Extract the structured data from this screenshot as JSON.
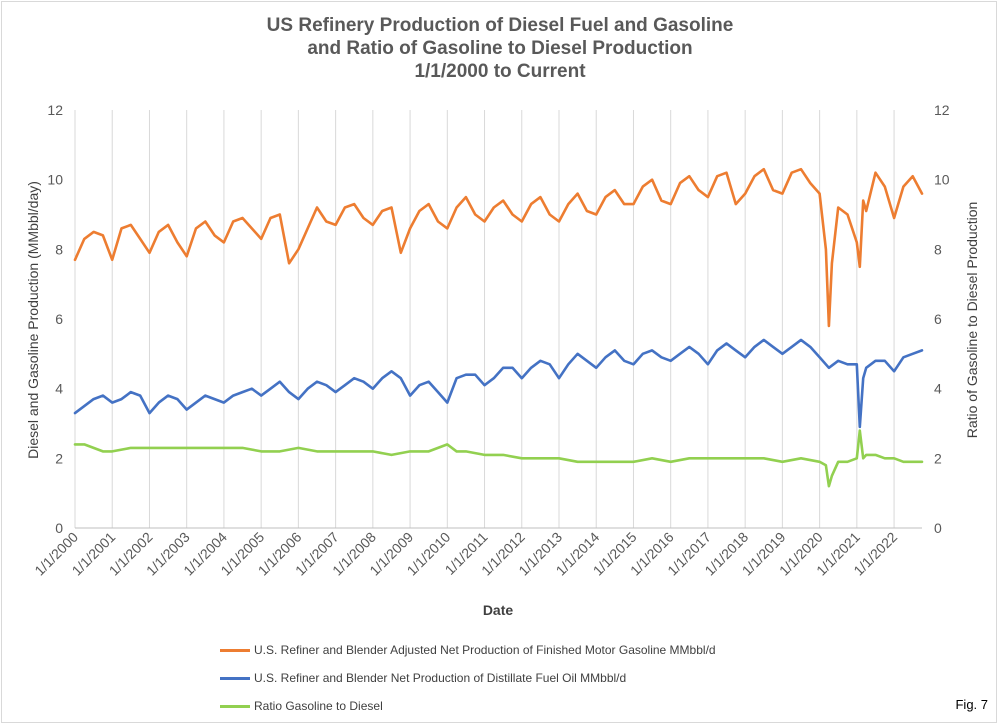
{
  "chart_data": {
    "type": "line",
    "title_lines": [
      "US Refinery Production of Diesel Fuel and Gasoline",
      "and Ratio of Gasoline to Diesel Production",
      "1/1/2000 to Current"
    ],
    "xlabel": "Date",
    "ylabel_left": "Diesel and Gasoline Production (MMbbl/day)",
    "ylabel_right": "Ratio of Gasoline to Diesel Production",
    "ylim": [
      0,
      12
    ],
    "y_ticks": [
      "0",
      "2",
      "4",
      "6",
      "8",
      "10",
      "12"
    ],
    "x_range": [
      2000.0,
      2022.75
    ],
    "x_ticks": [
      "1/1/2000",
      "1/1/2001",
      "1/1/2002",
      "1/1/2003",
      "1/1/2004",
      "1/1/2005",
      "1/1/2006",
      "1/1/2007",
      "1/1/2008",
      "1/1/2009",
      "1/1/2010",
      "1/1/2011",
      "1/1/2012",
      "1/1/2013",
      "1/1/2014",
      "1/1/2015",
      "1/1/2016",
      "1/1/2017",
      "1/1/2018",
      "1/1/2019",
      "1/1/2020",
      "1/1/2021",
      "1/1/2022"
    ],
    "grid": "vertical",
    "legend_position": "bottom",
    "series": [
      {
        "name": "U.S. Refiner and Blender Adjusted Net Production of Finished Motor Gasoline MMbbl/d",
        "color": "#ed7d31",
        "x": [
          2000.0,
          2000.25,
          2000.5,
          2000.75,
          2001.0,
          2001.25,
          2001.5,
          2001.75,
          2002.0,
          2002.25,
          2002.5,
          2002.75,
          2003.0,
          2003.25,
          2003.5,
          2003.75,
          2004.0,
          2004.25,
          2004.5,
          2004.75,
          2005.0,
          2005.25,
          2005.5,
          2005.75,
          2006.0,
          2006.25,
          2006.5,
          2006.75,
          2007.0,
          2007.25,
          2007.5,
          2007.75,
          2008.0,
          2008.25,
          2008.5,
          2008.75,
          2009.0,
          2009.25,
          2009.5,
          2009.75,
          2010.0,
          2010.25,
          2010.5,
          2010.75,
          2011.0,
          2011.25,
          2011.5,
          2011.75,
          2012.0,
          2012.25,
          2012.5,
          2012.75,
          2013.0,
          2013.25,
          2013.5,
          2013.75,
          2014.0,
          2014.25,
          2014.5,
          2014.75,
          2015.0,
          2015.25,
          2015.5,
          2015.75,
          2016.0,
          2016.25,
          2016.5,
          2016.75,
          2017.0,
          2017.25,
          2017.5,
          2017.75,
          2018.0,
          2018.25,
          2018.5,
          2018.75,
          2019.0,
          2019.25,
          2019.5,
          2019.75,
          2020.0,
          2020.17,
          2020.25,
          2020.33,
          2020.5,
          2020.75,
          2021.0,
          2021.08,
          2021.17,
          2021.25,
          2021.5,
          2021.75,
          2022.0,
          2022.25,
          2022.5,
          2022.75
        ],
        "values": [
          7.7,
          8.3,
          8.5,
          8.4,
          7.7,
          8.6,
          8.7,
          8.3,
          7.9,
          8.5,
          8.7,
          8.2,
          7.8,
          8.6,
          8.8,
          8.4,
          8.2,
          8.8,
          8.9,
          8.6,
          8.3,
          8.9,
          9.0,
          7.6,
          8.0,
          8.6,
          9.2,
          8.8,
          8.7,
          9.2,
          9.3,
          8.9,
          8.7,
          9.1,
          9.2,
          7.9,
          8.6,
          9.1,
          9.3,
          8.8,
          8.6,
          9.2,
          9.5,
          9.0,
          8.8,
          9.2,
          9.4,
          9.0,
          8.8,
          9.3,
          9.5,
          9.0,
          8.8,
          9.3,
          9.6,
          9.1,
          9.0,
          9.5,
          9.7,
          9.3,
          9.3,
          9.8,
          10.0,
          9.4,
          9.3,
          9.9,
          10.1,
          9.7,
          9.5,
          10.1,
          10.2,
          9.3,
          9.6,
          10.1,
          10.3,
          9.7,
          9.6,
          10.2,
          10.3,
          9.9,
          9.6,
          8.0,
          5.8,
          7.6,
          9.2,
          9.0,
          8.2,
          7.5,
          9.4,
          9.1,
          10.2,
          9.8,
          8.9,
          9.8,
          10.1,
          9.6
        ]
      },
      {
        "name": "U.S. Refiner and Blender Net Production of Distillate Fuel Oil MMbbl/d",
        "color": "#4472c4",
        "x": [
          2000.0,
          2000.25,
          2000.5,
          2000.75,
          2001.0,
          2001.25,
          2001.5,
          2001.75,
          2002.0,
          2002.25,
          2002.5,
          2002.75,
          2003.0,
          2003.25,
          2003.5,
          2003.75,
          2004.0,
          2004.25,
          2004.5,
          2004.75,
          2005.0,
          2005.25,
          2005.5,
          2005.75,
          2006.0,
          2006.25,
          2006.5,
          2006.75,
          2007.0,
          2007.25,
          2007.5,
          2007.75,
          2008.0,
          2008.25,
          2008.5,
          2008.75,
          2009.0,
          2009.25,
          2009.5,
          2009.75,
          2010.0,
          2010.25,
          2010.5,
          2010.75,
          2011.0,
          2011.25,
          2011.5,
          2011.75,
          2012.0,
          2012.25,
          2012.5,
          2012.75,
          2013.0,
          2013.25,
          2013.5,
          2013.75,
          2014.0,
          2014.25,
          2014.5,
          2014.75,
          2015.0,
          2015.25,
          2015.5,
          2015.75,
          2016.0,
          2016.25,
          2016.5,
          2016.75,
          2017.0,
          2017.25,
          2017.5,
          2017.75,
          2018.0,
          2018.25,
          2018.5,
          2018.75,
          2019.0,
          2019.25,
          2019.5,
          2019.75,
          2020.0,
          2020.25,
          2020.5,
          2020.75,
          2021.0,
          2021.08,
          2021.17,
          2021.25,
          2021.5,
          2021.75,
          2022.0,
          2022.25,
          2022.5,
          2022.75
        ],
        "values": [
          3.3,
          3.5,
          3.7,
          3.8,
          3.6,
          3.7,
          3.9,
          3.8,
          3.3,
          3.6,
          3.8,
          3.7,
          3.4,
          3.6,
          3.8,
          3.7,
          3.6,
          3.8,
          3.9,
          4.0,
          3.8,
          4.0,
          4.2,
          3.9,
          3.7,
          4.0,
          4.2,
          4.1,
          3.9,
          4.1,
          4.3,
          4.2,
          4.0,
          4.3,
          4.5,
          4.3,
          3.8,
          4.1,
          4.2,
          3.9,
          3.6,
          4.3,
          4.4,
          4.4,
          4.1,
          4.3,
          4.6,
          4.6,
          4.3,
          4.6,
          4.8,
          4.7,
          4.3,
          4.7,
          5.0,
          4.8,
          4.6,
          4.9,
          5.1,
          4.8,
          4.7,
          5.0,
          5.1,
          4.9,
          4.8,
          5.0,
          5.2,
          5.0,
          4.7,
          5.1,
          5.3,
          5.1,
          4.9,
          5.2,
          5.4,
          5.2,
          5.0,
          5.2,
          5.4,
          5.2,
          4.9,
          4.6,
          4.8,
          4.7,
          4.7,
          2.9,
          4.3,
          4.6,
          4.8,
          4.8,
          4.5,
          4.9,
          5.0,
          5.1
        ]
      },
      {
        "name": "Ratio Gasoline to Diesel",
        "color": "#92d050",
        "x": [
          2000.0,
          2000.25,
          2000.5,
          2000.75,
          2001.0,
          2001.5,
          2002.0,
          2002.5,
          2003.0,
          2003.5,
          2004.0,
          2004.5,
          2005.0,
          2005.5,
          2006.0,
          2006.5,
          2007.0,
          2007.5,
          2008.0,
          2008.5,
          2009.0,
          2009.5,
          2010.0,
          2010.25,
          2010.5,
          2011.0,
          2011.5,
          2012.0,
          2012.5,
          2013.0,
          2013.5,
          2014.0,
          2014.5,
          2015.0,
          2015.5,
          2016.0,
          2016.5,
          2017.0,
          2017.5,
          2018.0,
          2018.5,
          2019.0,
          2019.5,
          2020.0,
          2020.17,
          2020.25,
          2020.33,
          2020.5,
          2020.75,
          2021.0,
          2021.08,
          2021.17,
          2021.25,
          2021.5,
          2021.75,
          2022.0,
          2022.25,
          2022.5,
          2022.75
        ],
        "values": [
          2.4,
          2.4,
          2.3,
          2.2,
          2.2,
          2.3,
          2.3,
          2.3,
          2.3,
          2.3,
          2.3,
          2.3,
          2.2,
          2.2,
          2.3,
          2.2,
          2.2,
          2.2,
          2.2,
          2.1,
          2.2,
          2.2,
          2.4,
          2.2,
          2.2,
          2.1,
          2.1,
          2.0,
          2.0,
          2.0,
          1.9,
          1.9,
          1.9,
          1.9,
          2.0,
          1.9,
          2.0,
          2.0,
          2.0,
          2.0,
          2.0,
          1.9,
          2.0,
          1.9,
          1.8,
          1.2,
          1.5,
          1.9,
          1.9,
          2.0,
          2.8,
          2.0,
          2.1,
          2.1,
          2.0,
          2.0,
          1.9,
          1.9,
          1.9
        ]
      }
    ]
  },
  "fig_label": "Fig. 7"
}
